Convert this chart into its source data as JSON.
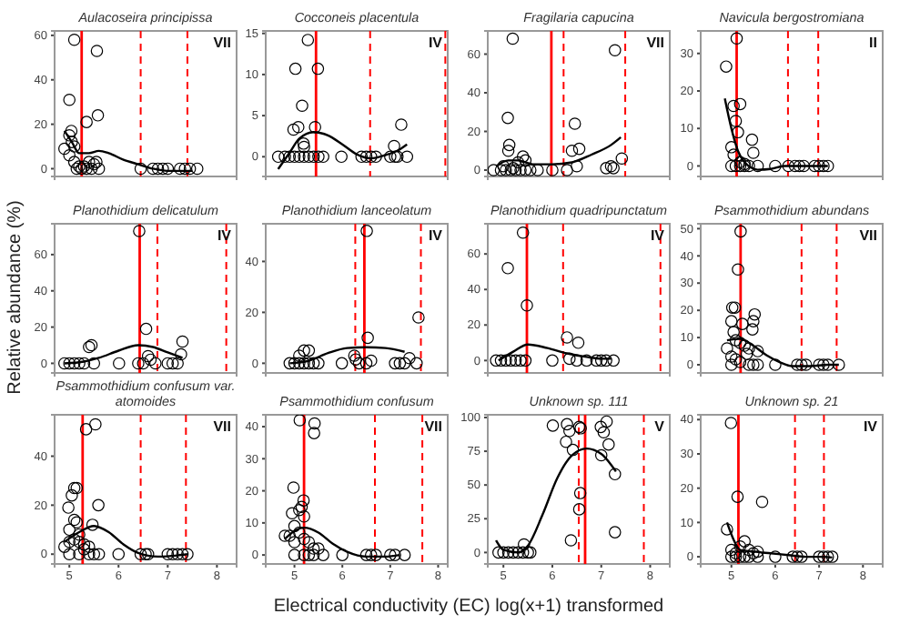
{
  "chart_data": [
    {
      "type": "scatter",
      "title": "Aulacoseira principissa",
      "annotations": [
        "VII"
      ],
      "xlim": [
        4.7,
        8.4
      ],
      "xticks": [
        5,
        6,
        7,
        8
      ],
      "ylim": [
        -3.5,
        62
      ],
      "yticks": [
        0,
        20,
        40,
        60
      ],
      "tick_labels": "y",
      "grid": false,
      "series": [
        {
          "marker": "circle",
          "color": "#000000",
          "x": [
            5.1,
            5.0,
            5.56,
            5.58,
            5.35,
            5.04,
            5.0,
            5.05,
            5.1,
            4.9,
            5.0,
            5.1,
            5.2,
            5.3,
            5.4,
            5.5,
            5.55,
            5.15,
            5.25,
            5.35,
            5.45,
            5.6,
            6.45,
            6.7,
            6.8,
            6.9,
            7.0,
            7.25,
            7.35,
            7.45,
            7.6
          ],
          "values": [
            58,
            31,
            53,
            24,
            21,
            17,
            15,
            12,
            10,
            9,
            6,
            3,
            1,
            1,
            3,
            2,
            3,
            0,
            0,
            0,
            0,
            0,
            0,
            0,
            0,
            0,
            0,
            0,
            0,
            0,
            0
          ]
        },
        {
          "type": "line",
          "marker": "none",
          "color": "#000000",
          "x": [
            4.9,
            5.05,
            5.2,
            5.4,
            5.6,
            5.8,
            6.1,
            6.4,
            6.7,
            7.0,
            7.3,
            7.5
          ],
          "values": [
            17,
            12,
            7,
            7,
            8,
            7,
            4,
            2,
            0,
            -1,
            -1,
            -1
          ]
        }
      ],
      "ref_lines": [
        {
          "axis": "x",
          "value": 5.25,
          "color": "#ff0000",
          "line_style": "solid"
        },
        {
          "axis": "x",
          "value": 6.45,
          "color": "#ff0000",
          "line_style": "dashed"
        },
        {
          "axis": "x",
          "value": 7.4,
          "color": "#ff0000",
          "line_style": "dashed"
        }
      ]
    },
    {
      "type": "scatter",
      "title": "Cocconeis placentula",
      "annotations": [
        "IV"
      ],
      "xlim": [
        4.4,
        8.2
      ],
      "xticks": [
        5,
        6,
        7,
        8
      ],
      "ylim": [
        -2.4,
        15.3
      ],
      "yticks": [
        0,
        5,
        10,
        15
      ],
      "tick_labels": "y",
      "grid": false,
      "series": [
        {
          "marker": "circle",
          "color": "#000000",
          "x": [
            5.28,
            5.02,
            5.49,
            5.16,
            5.43,
            5.08,
            4.98,
            5.19,
            5.2,
            7.23,
            7.08,
            4.66,
            4.8,
            4.9,
            5.0,
            5.1,
            5.2,
            5.3,
            5.4,
            5.5,
            5.6,
            5.98,
            6.4,
            6.5,
            6.6,
            6.7,
            7.0,
            7.1,
            7.15,
            7.35
          ],
          "values": [
            14.2,
            10.7,
            10.7,
            6.2,
            3.6,
            3.6,
            3.3,
            1.6,
            1.2,
            3.9,
            1.3,
            0,
            0,
            0,
            0,
            0,
            0,
            0,
            0,
            0,
            0,
            0,
            0,
            0,
            0,
            0,
            0,
            0,
            0,
            0
          ]
        },
        {
          "type": "line",
          "marker": "none",
          "color": "#000000",
          "x": [
            4.66,
            4.9,
            5.1,
            5.4,
            5.7,
            6.0,
            6.3,
            6.6,
            6.9,
            7.2,
            7.35
          ],
          "values": [
            -1.5,
            0.5,
            2.2,
            3,
            2.6,
            1.5,
            0.3,
            -0.2,
            0.2,
            0.9,
            1.5
          ]
        }
      ],
      "ref_lines": [
        {
          "axis": "x",
          "value": 5.45,
          "color": "#ff0000",
          "line_style": "solid"
        },
        {
          "axis": "x",
          "value": 6.58,
          "color": "#ff0000",
          "line_style": "dashed"
        },
        {
          "axis": "x",
          "value": 8.15,
          "color": "#ff0000",
          "line_style": "dashed"
        }
      ]
    },
    {
      "type": "scatter",
      "title": "Fragilaria capucina",
      "annotations": [
        "VII"
      ],
      "xlim": [
        4.68,
        8.4
      ],
      "xticks": [
        5,
        6,
        7,
        8
      ],
      "ylim": [
        -3.3,
        72
      ],
      "yticks": [
        0,
        20,
        40,
        60
      ],
      "tick_labels": "y",
      "grid": false,
      "series": [
        {
          "marker": "circle",
          "color": "#000000",
          "x": [
            5.19,
            5.09,
            5.12,
            5.1,
            6.46,
            6.4,
            6.55,
            6.5,
            6.3,
            7.28,
            7.42,
            7.2,
            7.1,
            7.25,
            5.4,
            5.45,
            5.3,
            5.0,
            5.2,
            4.8,
            4.95,
            5.05,
            5.15,
            5.25,
            5.35,
            5.45,
            5.55,
            5.7,
            6.0
          ],
          "values": [
            68,
            27,
            13,
            10,
            24,
            10,
            11,
            2,
            0,
            62,
            6,
            2,
            1,
            1,
            7,
            5,
            4,
            2,
            1,
            0,
            0,
            0,
            0,
            0,
            0,
            0,
            0,
            0,
            0
          ]
        },
        {
          "type": "line",
          "marker": "none",
          "color": "#000000",
          "x": [
            4.85,
            5.1,
            5.3,
            5.6,
            6.0,
            6.4,
            6.8,
            7.2,
            7.4
          ],
          "values": [
            2,
            5,
            5,
            3,
            3,
            4,
            8,
            13,
            17
          ]
        }
      ],
      "ref_lines": [
        {
          "axis": "x",
          "value": 5.98,
          "color": "#ff0000",
          "line_style": "solid"
        },
        {
          "axis": "x",
          "value": 6.23,
          "color": "#ff0000",
          "line_style": "dashed"
        },
        {
          "axis": "x",
          "value": 7.49,
          "color": "#ff0000",
          "line_style": "dashed"
        }
      ]
    },
    {
      "type": "scatter",
      "title": "Navicula bergostromiana",
      "annotations": [
        "II"
      ],
      "xlim": [
        4.3,
        8.45
      ],
      "xticks": [
        5,
        6,
        7,
        8
      ],
      "ylim": [
        -2.8,
        36
      ],
      "yticks": [
        0,
        10,
        20,
        30
      ],
      "tick_labels": "y",
      "grid": false,
      "series": [
        {
          "marker": "circle",
          "color": "#000000",
          "x": [
            4.88,
            5.12,
            5.05,
            5.2,
            5.1,
            5.15,
            5.0,
            5.05,
            5.47,
            5.5,
            5.2,
            5.3,
            5.0,
            5.1,
            5.2,
            5.3,
            5.4,
            5.6,
            6.0,
            6.3,
            6.45,
            6.55,
            6.65,
            6.9,
            7.0,
            7.1,
            7.2
          ],
          "values": [
            26.5,
            34,
            16,
            16.5,
            12,
            9,
            5,
            3,
            7,
            3.5,
            1,
            0.5,
            0,
            0,
            0,
            0,
            0,
            0,
            0,
            0,
            0,
            0,
            0,
            0,
            0,
            0,
            0
          ]
        },
        {
          "type": "line",
          "marker": "none",
          "color": "#000000",
          "x": [
            4.85,
            5.0,
            5.15,
            5.3,
            5.6,
            5.9,
            6.2,
            6.6,
            7.0,
            7.2
          ],
          "values": [
            18,
            10,
            4,
            1,
            -1,
            -0.8,
            0,
            0,
            0,
            0
          ]
        }
      ],
      "ref_lines": [
        {
          "axis": "x",
          "value": 5.12,
          "color": "#ff0000",
          "line_style": "solid"
        },
        {
          "axis": "x",
          "value": 6.29,
          "color": "#ff0000",
          "line_style": "dashed"
        },
        {
          "axis": "x",
          "value": 6.98,
          "color": "#ff0000",
          "line_style": "dashed"
        }
      ]
    },
    {
      "type": "scatter",
      "title": "Planothidium delicatulum",
      "annotations": [
        "IV"
      ],
      "ylabel": "Relative abundance (%)",
      "xlim": [
        4.7,
        8.4
      ],
      "xticks": [
        5,
        6,
        7,
        8
      ],
      "ylim": [
        -5.3,
        77
      ],
      "yticks": [
        0,
        20,
        40,
        60
      ],
      "tick_labels": "y",
      "grid": false,
      "series": [
        {
          "marker": "circle",
          "color": "#000000",
          "x": [
            6.42,
            6.56,
            7.3,
            7.27,
            6.6,
            6.65,
            6.5,
            6.4,
            6.01,
            5.45,
            5.4,
            5.0,
            4.9,
            5.1,
            5.2,
            5.3,
            5.5,
            7.0,
            7.1,
            7.2,
            6.75
          ],
          "values": [
            73,
            19,
            12,
            5,
            4,
            2,
            0,
            0,
            0,
            10,
            9,
            0,
            0,
            0,
            0,
            0,
            0,
            0,
            0,
            0,
            0
          ]
        },
        {
          "type": "line",
          "marker": "none",
          "color": "#000000",
          "x": [
            4.9,
            5.3,
            5.6,
            6.0,
            6.4,
            6.7,
            7.0,
            7.3
          ],
          "values": [
            0,
            1,
            3,
            7,
            10,
            9,
            6,
            3
          ]
        }
      ],
      "ref_lines": [
        {
          "axis": "x",
          "value": 6.43,
          "color": "#ff0000",
          "line_style": "solid"
        },
        {
          "axis": "x",
          "value": 6.79,
          "color": "#ff0000",
          "line_style": "dashed"
        },
        {
          "axis": "x",
          "value": 8.19,
          "color": "#ff0000",
          "line_style": "dashed"
        }
      ]
    },
    {
      "type": "scatter",
      "title": "Planothidium lanceolatum",
      "annotations": [
        "IV"
      ],
      "xlim": [
        4.4,
        8.2
      ],
      "xticks": [
        5,
        6,
        7,
        8
      ],
      "ylim": [
        -3.8,
        54.8
      ],
      "yticks": [
        0,
        20,
        40
      ],
      "tick_labels": "y",
      "grid": false,
      "series": [
        {
          "marker": "circle",
          "color": "#000000",
          "x": [
            6.51,
            6.53,
            7.59,
            6.25,
            6.28,
            6.6,
            6.5,
            6.35,
            5.99,
            5.2,
            5.3,
            5.1,
            5.4,
            4.9,
            5.0,
            5.1,
            5.2,
            5.3,
            5.5,
            7.1,
            7.2,
            7.3,
            7.55,
            7.4
          ],
          "values": [
            52,
            10,
            18,
            3,
            1.5,
            1,
            0,
            0,
            0,
            5,
            5,
            3,
            0,
            0,
            0,
            0,
            0,
            0,
            0,
            0,
            0,
            0,
            0,
            2
          ]
        },
        {
          "type": "line",
          "marker": "none",
          "color": "#000000",
          "x": [
            4.9,
            5.3,
            5.7,
            6.1,
            6.5,
            6.9,
            7.3
          ],
          "values": [
            0,
            1,
            4,
            6,
            6.3,
            6,
            4.5
          ]
        }
      ],
      "ref_lines": [
        {
          "axis": "x",
          "value": 6.46,
          "color": "#ff0000",
          "line_style": "solid"
        },
        {
          "axis": "x",
          "value": 6.27,
          "color": "#ff0000",
          "line_style": "dashed"
        },
        {
          "axis": "x",
          "value": 7.64,
          "color": "#ff0000",
          "line_style": "dashed"
        }
      ]
    },
    {
      "type": "scatter",
      "title": "Planothidium quadripunctatum",
      "annotations": [
        "IV"
      ],
      "xlim": [
        4.68,
        8.4
      ],
      "xticks": [
        5,
        6,
        7,
        8
      ],
      "ylim": [
        -7,
        77
      ],
      "yticks": [
        0,
        20,
        40,
        60
      ],
      "tick_labels": "y",
      "grid": false,
      "series": [
        {
          "marker": "circle",
          "color": "#000000",
          "x": [
            5.4,
            5.09,
            5.48,
            6.3,
            6.53,
            6.35,
            6.5,
            6.0,
            4.85,
            4.95,
            5.05,
            5.15,
            5.25,
            5.35,
            5.45,
            6.7,
            6.9,
            7.0,
            7.1,
            7.25
          ],
          "values": [
            72,
            52,
            31,
            13,
            10,
            1,
            0,
            0,
            0,
            0,
            0,
            0,
            0,
            0,
            0,
            0,
            0,
            0,
            0,
            0
          ]
        },
        {
          "type": "line",
          "marker": "none",
          "color": "#000000",
          "x": [
            4.9,
            5.2,
            5.5,
            5.9,
            6.3,
            6.7,
            7.0,
            7.2
          ],
          "values": [
            0,
            5,
            9,
            7,
            4,
            2,
            1,
            1
          ]
        }
      ],
      "ref_lines": [
        {
          "axis": "x",
          "value": 5.48,
          "color": "#ff0000",
          "line_style": "solid"
        },
        {
          "axis": "x",
          "value": 6.22,
          "color": "#ff0000",
          "line_style": "dashed"
        },
        {
          "axis": "x",
          "value": 8.21,
          "color": "#ff0000",
          "line_style": "dashed"
        }
      ]
    },
    {
      "type": "scatter",
      "title": "Psammothidium abundans",
      "annotations": [
        "VII"
      ],
      "xlim": [
        4.3,
        8.45
      ],
      "xticks": [
        5,
        6,
        7,
        8
      ],
      "ylim": [
        -3,
        51.8
      ],
      "yticks": [
        0,
        10,
        20,
        30,
        40,
        50
      ],
      "tick_labels": "y",
      "grid": false,
      "series": [
        {
          "marker": "circle",
          "color": "#000000",
          "x": [
            5.21,
            5.15,
            5.02,
            5.08,
            5.53,
            5.5,
            5.48,
            5.0,
            5.05,
            5.25,
            5.1,
            5.2,
            4.9,
            5.3,
            5.4,
            5.35,
            5.6,
            5.0,
            5.1,
            5.2,
            5.4,
            5.5,
            5.6,
            5.0,
            6.0,
            6.5,
            6.6,
            6.7,
            7.0,
            7.1,
            7.2,
            7.45
          ],
          "values": [
            49,
            35,
            21,
            21,
            18.5,
            16,
            13,
            16,
            12,
            15,
            9,
            8,
            6,
            7,
            6,
            4,
            5,
            3,
            2,
            1,
            0,
            0,
            0,
            0,
            0,
            0,
            0,
            0,
            0,
            0,
            0,
            0
          ]
        },
        {
          "type": "line",
          "marker": "none",
          "color": "#000000",
          "x": [
            4.9,
            5.2,
            5.5,
            5.8,
            6.1,
            6.4,
            6.8,
            7.2,
            7.45
          ],
          "values": [
            9,
            9.5,
            7,
            3.5,
            1,
            -0.5,
            -0.5,
            0,
            0
          ]
        }
      ],
      "ref_lines": [
        {
          "axis": "x",
          "value": 5.21,
          "color": "#ff0000",
          "line_style": "solid"
        },
        {
          "axis": "x",
          "value": 6.6,
          "color": "#ff0000",
          "line_style": "dashed"
        },
        {
          "axis": "x",
          "value": 7.4,
          "color": "#ff0000",
          "line_style": "dashed"
        }
      ]
    },
    {
      "type": "scatter",
      "title": "Psammothidium confusum var. atomoides",
      "annotations": [
        "VII"
      ],
      "xlim": [
        4.7,
        8.4
      ],
      "xticks": [
        5,
        6,
        7,
        8
      ],
      "ylim": [
        -4,
        56.9
      ],
      "yticks": [
        0,
        20,
        40
      ],
      "grid": false,
      "series": [
        {
          "marker": "circle",
          "color": "#000000",
          "x": [
            5.34,
            5.53,
            5.59,
            5.47,
            5.1,
            5.15,
            5.05,
            4.98,
            5.1,
            5.15,
            5.0,
            5.2,
            4.9,
            5.0,
            5.1,
            5.2,
            5.3,
            5.4,
            5.3,
            5.4,
            5.5,
            5.0,
            5.2,
            5.6,
            6.0,
            6.45,
            6.55,
            6.6,
            7.0,
            7.1,
            7.2,
            7.3,
            7.4
          ],
          "values": [
            51,
            53,
            20,
            12,
            27,
            27,
            24,
            19,
            14,
            13,
            10,
            8,
            3,
            5,
            6,
            5,
            4,
            3,
            2,
            0,
            0,
            0,
            0,
            0,
            0,
            0,
            0,
            0,
            0,
            0,
            0,
            0,
            0
          ]
        },
        {
          "type": "line",
          "marker": "none",
          "color": "#000000",
          "x": [
            4.9,
            5.2,
            5.5,
            5.8,
            6.1,
            6.4,
            6.8,
            7.2,
            7.4
          ],
          "values": [
            5,
            9,
            11.5,
            9,
            4,
            0.5,
            -1,
            -0.5,
            0
          ]
        }
      ],
      "ref_lines": [
        {
          "axis": "x",
          "value": 5.27,
          "color": "#ff0000",
          "line_style": "solid"
        },
        {
          "axis": "x",
          "value": 6.45,
          "color": "#ff0000",
          "line_style": "dashed"
        },
        {
          "axis": "x",
          "value": 7.37,
          "color": "#ff0000",
          "line_style": "dashed"
        }
      ]
    },
    {
      "type": "scatter",
      "title": "Psammothidium confusum",
      "annotations": [
        "VII"
      ],
      "xlabel": "Electrical conductivity (EC) log(x+1) transformed",
      "xlim": [
        4.4,
        8.2
      ],
      "xticks": [
        5,
        6,
        7,
        8
      ],
      "ylim": [
        -2.8,
        43.7
      ],
      "yticks": [
        0,
        10,
        20,
        30,
        40
      ],
      "grid": false,
      "series": [
        {
          "marker": "circle",
          "color": "#000000",
          "x": [
            5.11,
            5.42,
            5.41,
            4.98,
            5.19,
            5.15,
            5.1,
            4.95,
            5.2,
            5.0,
            5.1,
            4.9,
            4.8,
            5.0,
            5.2,
            5.3,
            5.4,
            5.5,
            5.0,
            5.2,
            5.3,
            5.4,
            5.6,
            6.0,
            6.5,
            6.6,
            6.7,
            7.0,
            7.1,
            7.3
          ],
          "values": [
            42,
            41,
            38,
            21,
            17,
            15,
            14,
            13,
            12,
            9,
            7,
            6,
            6,
            4,
            5,
            4,
            2,
            2,
            0,
            0,
            0,
            0,
            0,
            0,
            0,
            0,
            0,
            0,
            0,
            0
          ]
        },
        {
          "type": "line",
          "marker": "none",
          "color": "#000000",
          "x": [
            4.8,
            5.0,
            5.2,
            5.5,
            5.8,
            6.1,
            6.5,
            6.9,
            7.2
          ],
          "values": [
            5,
            7.5,
            8.5,
            7,
            3.5,
            1,
            -0.5,
            -0.5,
            0
          ]
        }
      ],
      "ref_lines": [
        {
          "axis": "x",
          "value": 5.2,
          "color": "#ff0000",
          "line_style": "solid"
        },
        {
          "axis": "x",
          "value": 6.68,
          "color": "#ff0000",
          "line_style": "dashed"
        },
        {
          "axis": "x",
          "value": 7.67,
          "color": "#ff0000",
          "line_style": "dashed"
        }
      ]
    },
    {
      "type": "scatter",
      "title": "Unknown sp. 111",
      "annotations": [
        "V"
      ],
      "xlim": [
        4.68,
        8.4
      ],
      "xticks": [
        5,
        6,
        7,
        8
      ],
      "ylim": [
        -8.5,
        102
      ],
      "yticks": [
        0,
        25,
        50,
        75,
        100
      ],
      "grid": false,
      "series": [
        {
          "marker": "circle",
          "color": "#000000",
          "x": [
            6.01,
            6.3,
            6.35,
            6.55,
            6.58,
            6.28,
            6.42,
            6.57,
            6.55,
            6.38,
            6.99,
            7.11,
            7.05,
            7.0,
            7.15,
            7.28,
            7.28,
            5.42,
            4.9,
            5.0,
            5.1,
            5.2,
            5.3,
            5.4,
            5.5,
            5.55
          ],
          "values": [
            94,
            95,
            90,
            93,
            92,
            82,
            76,
            44,
            32,
            9,
            93,
            97,
            89,
            72,
            80,
            58,
            15,
            6,
            0,
            0,
            0,
            0,
            0,
            0,
            0,
            0
          ]
        },
        {
          "type": "line",
          "marker": "none",
          "color": "#000000",
          "x": [
            4.85,
            5.0,
            5.3,
            5.5,
            5.8,
            6.1,
            6.4,
            6.7,
            7.0,
            7.3
          ],
          "values": [
            9,
            2,
            0,
            5,
            28,
            55,
            72,
            77,
            73,
            60
          ]
        }
      ],
      "ref_lines": [
        {
          "axis": "x",
          "value": 6.67,
          "color": "#ff0000",
          "line_style": "solid"
        },
        {
          "axis": "x",
          "value": 6.54,
          "color": "#ff0000",
          "line_style": "dashed"
        },
        {
          "axis": "x",
          "value": 7.87,
          "color": "#ff0000",
          "line_style": "dashed"
        }
      ]
    },
    {
      "type": "scatter",
      "title": "Unknown sp. 21",
      "annotations": [
        "IV"
      ],
      "xlim": [
        4.3,
        8.45
      ],
      "xticks": [
        5,
        6,
        7,
        8
      ],
      "ylim": [
        -2.1,
        41.4
      ],
      "yticks": [
        0,
        10,
        20,
        30,
        40
      ],
      "grid": false,
      "series": [
        {
          "marker": "circle",
          "color": "#000000",
          "x": [
            4.99,
            5.14,
            5.7,
            4.9,
            5.0,
            5.1,
            5.2,
            5.3,
            5.4,
            5.5,
            5.6,
            5.0,
            5.1,
            5.2,
            5.3,
            5.4,
            5.6,
            6.0,
            6.4,
            6.5,
            6.6,
            7.0,
            7.1,
            7.2,
            7.3
          ],
          "values": [
            39,
            17.5,
            16,
            8,
            2,
            1,
            3,
            4.5,
            2,
            1,
            1.5,
            0,
            0,
            0,
            0,
            0,
            0,
            0,
            0,
            0,
            0,
            0,
            0,
            0,
            0
          ]
        },
        {
          "type": "line",
          "marker": "none",
          "color": "#000000",
          "x": [
            4.9,
            5.05,
            5.2,
            5.5,
            5.9,
            6.3,
            6.7,
            7.1,
            7.3
          ],
          "values": [
            10,
            5,
            2,
            1.5,
            1,
            0.5,
            0,
            0,
            -0.2
          ]
        }
      ],
      "ref_lines": [
        {
          "axis": "x",
          "value": 5.16,
          "color": "#ff0000",
          "line_style": "solid"
        },
        {
          "axis": "x",
          "value": 6.45,
          "color": "#ff0000",
          "line_style": "dashed"
        },
        {
          "axis": "x",
          "value": 7.11,
          "color": "#ff0000",
          "line_style": "dashed"
        }
      ]
    }
  ]
}
